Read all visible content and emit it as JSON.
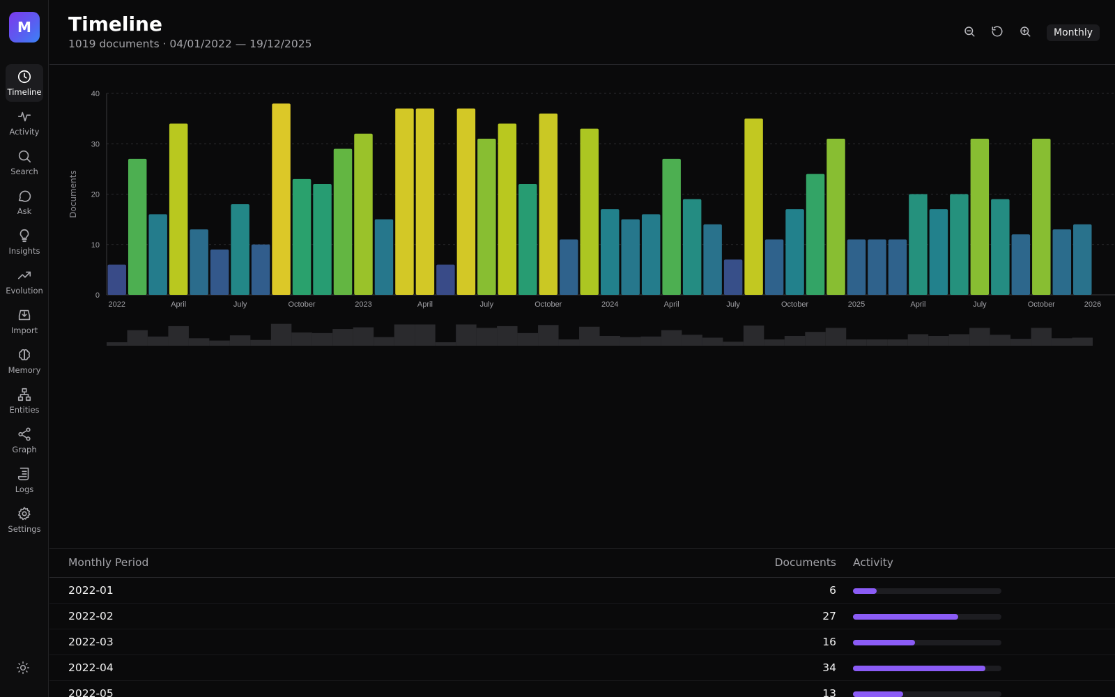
{
  "app": {
    "logo_letter": "M"
  },
  "sidebar": {
    "items": [
      {
        "label": "Timeline",
        "icon": "clock-icon",
        "active": true
      },
      {
        "label": "Activity",
        "icon": "pulse-icon"
      },
      {
        "label": "Search",
        "icon": "search-icon"
      },
      {
        "label": "Ask",
        "icon": "chat-bubble-icon"
      },
      {
        "label": "Insights",
        "icon": "lightbulb-icon"
      },
      {
        "label": "Evolution",
        "icon": "trending-up-icon"
      },
      {
        "label": "Import",
        "icon": "import-tray-icon"
      },
      {
        "label": "Memory",
        "icon": "brain-icon"
      },
      {
        "label": "Entities",
        "icon": "hierarchy-icon"
      },
      {
        "label": "Graph",
        "icon": "share-nodes-icon"
      },
      {
        "label": "Logs",
        "icon": "scroll-icon"
      },
      {
        "label": "Settings",
        "icon": "gear-icon"
      }
    ],
    "theme_icon": "sun-icon"
  },
  "header": {
    "title": "Timeline",
    "subtitle": "1019 documents · 04/01/2022 — 19/12/2025",
    "toolbar": {
      "zoom_out_icon": "zoom-out-icon",
      "reset_icon": "reset-icon",
      "zoom_in_icon": "zoom-in-icon",
      "granularity": "Monthly"
    }
  },
  "colors": {
    "accent": "#8b5cf6",
    "background": "#0a0a0b",
    "brush": "#2a2a2d"
  },
  "chart_data": {
    "type": "bar",
    "ylabel": "Documents",
    "ylim": [
      0,
      40
    ],
    "yticks": [
      0,
      10,
      20,
      30,
      40
    ],
    "grid": true,
    "color_scale": "viridis-like by value",
    "xtick_labels": [
      "2022",
      "April",
      "July",
      "October",
      "2023",
      "April",
      "July",
      "October",
      "2024",
      "April",
      "July",
      "October",
      "2025",
      "April",
      "July",
      "October",
      "2026"
    ],
    "categories": [
      "2022-01",
      "2022-02",
      "2022-03",
      "2022-04",
      "2022-05",
      "2022-06",
      "2022-07",
      "2022-08",
      "2022-09",
      "2022-10",
      "2022-11",
      "2022-12",
      "2023-01",
      "2023-02",
      "2023-03",
      "2023-04",
      "2023-05",
      "2023-06",
      "2023-07",
      "2023-08",
      "2023-09",
      "2023-10",
      "2023-11",
      "2023-12",
      "2024-01",
      "2024-02",
      "2024-03",
      "2024-04",
      "2024-05",
      "2024-06",
      "2024-07",
      "2024-08",
      "2024-09",
      "2024-10",
      "2024-11",
      "2024-12",
      "2025-01",
      "2025-02",
      "2025-03",
      "2025-04",
      "2025-05",
      "2025-06",
      "2025-07",
      "2025-08",
      "2025-09",
      "2025-10",
      "2025-11",
      "2025-12"
    ],
    "values": [
      6,
      27,
      16,
      34,
      13,
      9,
      18,
      10,
      38,
      23,
      22,
      29,
      32,
      15,
      37,
      37,
      6,
      37,
      31,
      34,
      22,
      36,
      11,
      33,
      17,
      15,
      16,
      27,
      19,
      14,
      7,
      35,
      11,
      17,
      24,
      31,
      11,
      11,
      11,
      20,
      17,
      20,
      31,
      19,
      12,
      31,
      13,
      14
    ]
  },
  "table": {
    "headers": {
      "period": "Monthly Period",
      "documents": "Documents",
      "activity": "Activity"
    },
    "rows": [
      {
        "period": "2022-01",
        "documents": "6",
        "activity": 0.16
      },
      {
        "period": "2022-02",
        "documents": "27",
        "activity": 0.71
      },
      {
        "period": "2022-03",
        "documents": "16",
        "activity": 0.42
      },
      {
        "period": "2022-04",
        "documents": "34",
        "activity": 0.89
      },
      {
        "period": "2022-05",
        "documents": "13",
        "activity": 0.34
      }
    ]
  }
}
